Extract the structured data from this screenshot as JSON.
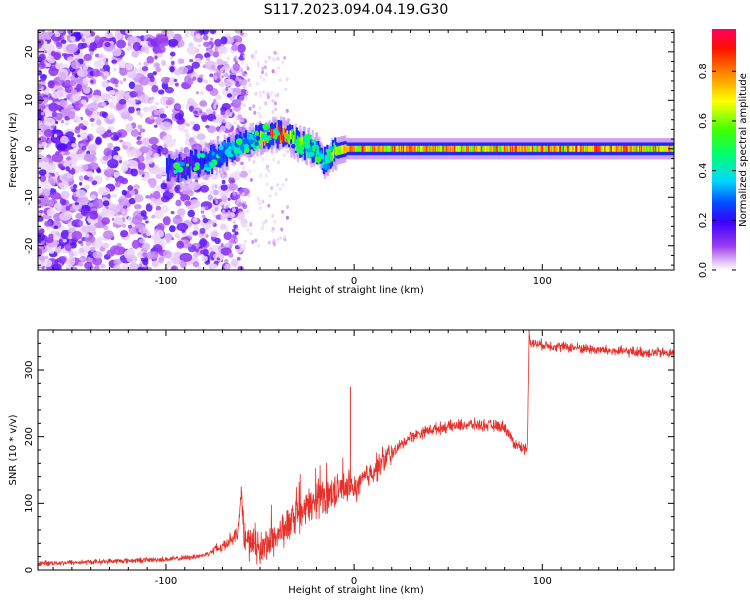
{
  "title": "S117.2023.094.04.19.G30",
  "chart_data": [
    {
      "type": "heatmap",
      "xlabel": "Height of straight line (km)",
      "ylabel": "Frequency (Hz)",
      "xlim": [
        -168,
        170
      ],
      "ylim": [
        -25,
        24.5
      ],
      "xticks": [
        -100,
        0,
        100
      ],
      "yticks": [
        -20,
        -10,
        0,
        10,
        20
      ],
      "colorbar": {
        "label": "Normalized spectral amplitude",
        "range": [
          0,
          0.97
        ],
        "ticks": [
          0.0,
          0.2,
          0.4,
          0.6,
          0.8
        ],
        "tick_labels": [
          "0.0",
          "0.2",
          "0.4",
          "0.6",
          "0.8"
        ],
        "colormap": "rainbow"
      },
      "ridge": {
        "x": [
          -95,
          -85,
          -75,
          -65,
          -55,
          -45,
          -40,
          -35,
          -30,
          -25,
          -20,
          -17,
          -13,
          -10,
          -5,
          0,
          20,
          60,
          100,
          140,
          170
        ],
        "freq": [
          -4,
          -3,
          -2,
          0,
          1.5,
          3,
          3,
          2.5,
          1,
          0.5,
          -0.5,
          -2.5,
          -1.5,
          -0.5,
          0,
          0,
          0,
          0,
          0,
          0,
          0
        ],
        "amplitude": [
          0.15,
          0.2,
          0.3,
          0.35,
          0.4,
          0.9,
          0.95,
          0.7,
          0.6,
          0.6,
          0.5,
          0.35,
          0.6,
          0.7,
          0.8,
          0.85,
          0.92,
          0.88,
          0.9,
          0.85,
          0.8
        ]
      }
    },
    {
      "type": "line",
      "xlabel": "Height of straight line (km)",
      "ylabel": "SNR (10 * v/v)",
      "xlim": [
        -168,
        170
      ],
      "ylim": [
        0,
        360
      ],
      "xticks": [
        -100,
        0,
        100
      ],
      "yticks": [
        0,
        100,
        200,
        300
      ],
      "color": "#e8302a",
      "series": [
        {
          "x": [
            -168,
            -140,
            -120,
            -100,
            -90,
            -80,
            -70,
            -62,
            -60,
            -58,
            -50,
            -40,
            -30,
            -20,
            -10,
            -5,
            -2,
            0,
            10,
            20,
            30,
            40,
            50,
            60,
            70,
            80,
            83,
            85,
            88,
            92,
            93,
            94,
            100,
            110,
            120,
            130,
            140,
            150,
            160,
            170
          ],
          "y": [
            10,
            12,
            14,
            16,
            18,
            22,
            35,
            55,
            110,
            45,
            30,
            55,
            80,
            105,
            120,
            125,
            130,
            120,
            150,
            175,
            200,
            210,
            215,
            218,
            217,
            215,
            200,
            190,
            185,
            180,
            355,
            340,
            338,
            335,
            333,
            330,
            328,
            327,
            326,
            325
          ]
        }
      ],
      "spikes": [
        {
          "x": -60,
          "y": 125
        },
        {
          "x": -2,
          "y": 275
        },
        {
          "x": 93,
          "y": 360
        }
      ]
    }
  ]
}
